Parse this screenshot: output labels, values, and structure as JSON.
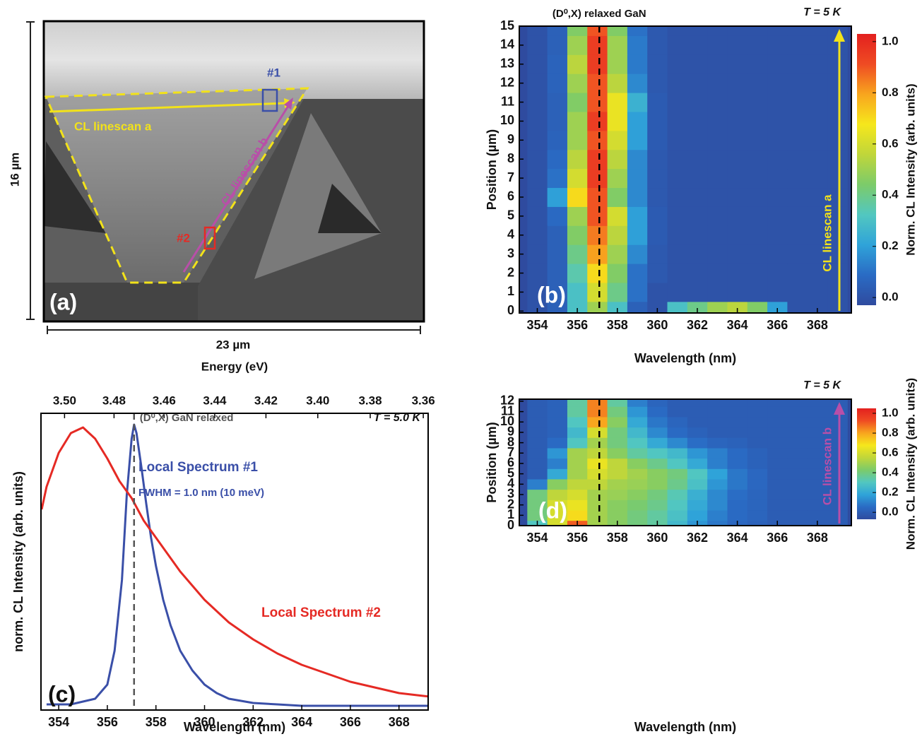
{
  "image_panel": {
    "panel_label": "(a)",
    "height_label": "16 µm",
    "width_label": "23 µm",
    "linescan_a": "CL linescan a",
    "linescan_b": "CL linescan b",
    "marker_1": "#1",
    "marker_2": "#2"
  },
  "chart_data": [
    {
      "type": "heatmap",
      "panel_label": "(b)",
      "x_label": "Wavelength (nm)",
      "y_label": "Position (µm)",
      "x": [
        354,
        355,
        356,
        357,
        358,
        359,
        360,
        361,
        362,
        363,
        364,
        365,
        366,
        367,
        368,
        369
      ],
      "y": [
        0,
        1,
        2,
        3,
        4,
        5,
        6,
        7,
        8,
        9,
        10,
        11,
        12,
        13,
        14,
        15
      ],
      "z": [
        [
          0,
          0.05,
          0.3,
          0.5,
          0.3,
          0.05,
          0,
          0.3,
          0.4,
          0.5,
          0.55,
          0.45,
          0.2,
          0,
          0,
          0
        ],
        [
          0,
          0.05,
          0.3,
          0.6,
          0.4,
          0.1,
          0,
          0,
          0,
          0,
          0,
          0,
          0,
          0,
          0,
          0
        ],
        [
          0,
          0.05,
          0.35,
          0.7,
          0.45,
          0.1,
          0.02,
          0,
          0,
          0,
          0,
          0,
          0,
          0,
          0,
          0
        ],
        [
          0,
          0.05,
          0.4,
          0.8,
          0.5,
          0.15,
          0.02,
          0,
          0,
          0,
          0,
          0,
          0,
          0,
          0,
          0
        ],
        [
          0,
          0.05,
          0.45,
          0.85,
          0.55,
          0.2,
          0.03,
          0,
          0,
          0,
          0,
          0,
          0,
          0,
          0,
          0
        ],
        [
          0,
          0.08,
          0.5,
          0.9,
          0.6,
          0.2,
          0.03,
          0,
          0,
          0,
          0,
          0,
          0,
          0,
          0,
          0
        ],
        [
          0,
          0.2,
          0.7,
          0.9,
          0.45,
          0.15,
          0.02,
          0,
          0,
          0,
          0,
          0,
          0,
          0,
          0,
          0
        ],
        [
          0,
          0.1,
          0.6,
          0.95,
          0.5,
          0.15,
          0.02,
          0,
          0,
          0,
          0,
          0,
          0,
          0,
          0,
          0
        ],
        [
          0,
          0.08,
          0.55,
          0.95,
          0.55,
          0.15,
          0.02,
          0,
          0,
          0,
          0,
          0,
          0,
          0,
          0,
          0
        ],
        [
          0,
          0.06,
          0.5,
          0.9,
          0.6,
          0.2,
          0.03,
          0,
          0,
          0,
          0,
          0,
          0,
          0,
          0,
          0
        ],
        [
          0,
          0.05,
          0.5,
          0.95,
          0.65,
          0.2,
          0.03,
          0,
          0,
          0,
          0,
          0,
          0,
          0,
          0,
          0
        ],
        [
          0,
          0.05,
          0.45,
          0.9,
          0.65,
          0.25,
          0.03,
          0,
          0,
          0,
          0,
          0,
          0,
          0,
          0,
          0
        ],
        [
          0,
          0.06,
          0.5,
          0.9,
          0.55,
          0.15,
          0.02,
          0,
          0,
          0,
          0,
          0,
          0,
          0,
          0,
          0
        ],
        [
          0,
          0.06,
          0.55,
          0.95,
          0.5,
          0.12,
          0.02,
          0,
          0,
          0,
          0,
          0,
          0,
          0,
          0,
          0
        ],
        [
          0,
          0.05,
          0.5,
          0.95,
          0.5,
          0.12,
          0.02,
          0,
          0,
          0,
          0,
          0,
          0,
          0,
          0,
          0
        ],
        [
          0,
          0.05,
          0.45,
          0.9,
          0.45,
          0.1,
          0.02,
          0,
          0,
          0,
          0,
          0,
          0,
          0,
          0,
          0
        ]
      ],
      "xlim": [
        353.1,
        369.7
      ],
      "ylim": [
        -0.1,
        15
      ],
      "xticks": [
        354,
        356,
        358,
        360,
        362,
        364,
        366,
        368
      ],
      "yticks": [
        0,
        1,
        2,
        3,
        4,
        5,
        6,
        7,
        8,
        9,
        10,
        11,
        12,
        13,
        14,
        15
      ],
      "colormap": [
        "#2f4b9f",
        "#2a6bc4",
        "#2fa3d9",
        "#52c7c0",
        "#7ccb6a",
        "#c0d63a",
        "#f6e71c",
        "#f8a51e",
        "#ef4b23",
        "#e3201f"
      ],
      "colorbar": {
        "label": "Norm. CL Intensity (arb. units)",
        "clim": [
          -0.03,
          1.03
        ],
        "ticks": [
          {
            "value": 0,
            "label": "0.0"
          },
          {
            "value": 0.2,
            "label": "0.2"
          },
          {
            "value": 0.4,
            "label": "0.4"
          },
          {
            "value": 0.6,
            "label": "0.6"
          },
          {
            "value": 0.8,
            "label": "0.8"
          },
          {
            "value": 1,
            "label": "1.0"
          }
        ]
      },
      "reference_line": {
        "x": 357.1,
        "label": "(D⁰,X) relaxed GaN"
      },
      "temperature": "T = 5 K",
      "linescan": {
        "label": "CL linescan a",
        "color": "#f2e21a"
      }
    },
    {
      "type": "line",
      "panel_label": "(c)",
      "x_label": "Wavelength (nm)",
      "x2_label": "Energy (eV)",
      "y_label": "norm. CL Intensity (arb. units)",
      "xlim": [
        353.27,
        369.2
      ],
      "ylim": [
        -0.01,
        1.04
      ],
      "xticks": [
        354,
        356,
        358,
        360,
        362,
        364,
        366,
        368
      ],
      "x2ticks": [
        {
          "value": 3.5,
          "label": "3.50"
        },
        3.48,
        3.46,
        3.44,
        3.42,
        {
          "value": 3.4,
          "label": "3.40"
        },
        3.38,
        3.36
      ],
      "series": [
        {
          "name": "Local Spectrum #1",
          "color": "#3a4fa8",
          "x": [
            353.5,
            354,
            354.5,
            355,
            355.5,
            356,
            356.3,
            356.6,
            356.8,
            357,
            357.1,
            357.2,
            357.4,
            357.6,
            357.8,
            358,
            358.3,
            358.6,
            359,
            359.5,
            360,
            360.5,
            361,
            362,
            363,
            364,
            366,
            368,
            370
          ],
          "values": [
            0.01,
            0.01,
            0.01,
            0.02,
            0.03,
            0.08,
            0.2,
            0.45,
            0.75,
            0.95,
            1.0,
            0.97,
            0.85,
            0.72,
            0.6,
            0.5,
            0.38,
            0.29,
            0.2,
            0.13,
            0.08,
            0.05,
            0.03,
            0.015,
            0.01,
            0.005,
            0.005,
            0.005,
            0.005
          ]
        },
        {
          "name": "Local Spectrum #2",
          "color": "#e52a24",
          "x": [
            353.3,
            353.5,
            354,
            354.5,
            355,
            355.5,
            356,
            356.5,
            357,
            357.5,
            358,
            358.5,
            359,
            359.5,
            360,
            361,
            362,
            363,
            364,
            365,
            366,
            367,
            368,
            369,
            370
          ],
          "values": [
            0.7,
            0.78,
            0.9,
            0.97,
            0.99,
            0.95,
            0.88,
            0.8,
            0.74,
            0.66,
            0.6,
            0.54,
            0.48,
            0.43,
            0.38,
            0.3,
            0.24,
            0.19,
            0.15,
            0.12,
            0.09,
            0.07,
            0.05,
            0.04,
            0.03
          ]
        }
      ],
      "fwhm_label": "FWHM = 1.0 nm (10 meV)",
      "reference_line": {
        "x": 357.1,
        "label": "(D⁰,X) GaN relaxed"
      },
      "temperature": "T = 5.0 K"
    },
    {
      "type": "heatmap",
      "panel_label": "(d)",
      "x_label": "Wavelength (nm)",
      "y_label": "Position (µm)",
      "x": [
        354,
        355,
        356,
        357,
        358,
        359,
        360,
        361,
        362,
        363,
        364,
        365,
        366,
        367,
        368,
        369
      ],
      "y": [
        0,
        1,
        2,
        3,
        4,
        5,
        6,
        7,
        8,
        9,
        10,
        11,
        12
      ],
      "z": [
        [
          0.3,
          0.6,
          0.9,
          0.5,
          0.45,
          0.4,
          0.35,
          0.25,
          0.15,
          0.08,
          0.04,
          0.02,
          0,
          0,
          0,
          0
        ],
        [
          0.4,
          0.6,
          0.7,
          0.5,
          0.45,
          0.4,
          0.35,
          0.28,
          0.18,
          0.1,
          0.05,
          0.03,
          0,
          0,
          0,
          0
        ],
        [
          0.4,
          0.6,
          0.65,
          0.5,
          0.45,
          0.42,
          0.38,
          0.3,
          0.2,
          0.12,
          0.05,
          0.03,
          0,
          0,
          0,
          0
        ],
        [
          0.4,
          0.55,
          0.6,
          0.5,
          0.48,
          0.45,
          0.4,
          0.32,
          0.22,
          0.12,
          0.06,
          0.03,
          0,
          0,
          0,
          0
        ],
        [
          0.1,
          0.45,
          0.55,
          0.55,
          0.5,
          0.48,
          0.45,
          0.38,
          0.28,
          0.15,
          0.08,
          0.04,
          0,
          0,
          0,
          0
        ],
        [
          0,
          0.2,
          0.5,
          0.6,
          0.55,
          0.5,
          0.45,
          0.4,
          0.3,
          0.18,
          0.08,
          0.04,
          0,
          0,
          0,
          0
        ],
        [
          0,
          0.1,
          0.5,
          0.65,
          0.55,
          0.45,
          0.38,
          0.3,
          0.2,
          0.1,
          0.05,
          0.02,
          0,
          0,
          0,
          0
        ],
        [
          0,
          0.15,
          0.5,
          0.55,
          0.45,
          0.35,
          0.3,
          0.25,
          0.15,
          0.1,
          0.05,
          0.02,
          0,
          0,
          0,
          0
        ],
        [
          0,
          0.05,
          0.3,
          0.5,
          0.4,
          0.3,
          0.2,
          0.12,
          0.06,
          0.03,
          0.02,
          0,
          0,
          0,
          0,
          0
        ],
        [
          0,
          0.02,
          0.25,
          0.6,
          0.4,
          0.25,
          0.12,
          0.05,
          0.02,
          0,
          0,
          0,
          0,
          0,
          0,
          0
        ],
        [
          0,
          0.02,
          0.3,
          0.8,
          0.45,
          0.2,
          0.08,
          0.03,
          0,
          0,
          0,
          0,
          0,
          0,
          0,
          0
        ],
        [
          0,
          0.02,
          0.35,
          0.85,
          0.4,
          0.15,
          0.05,
          0,
          0,
          0,
          0,
          0,
          0,
          0,
          0,
          0
        ],
        [
          0,
          0.02,
          0.35,
          0.85,
          0.35,
          0.1,
          0.03,
          0,
          0,
          0,
          0,
          0,
          0,
          0,
          0,
          0
        ]
      ],
      "xlim": [
        353.1,
        369.7
      ],
      "ylim": [
        0,
        12.2
      ],
      "xticks": [
        354,
        356,
        358,
        360,
        362,
        364,
        366,
        368
      ],
      "yticks": [
        0,
        1,
        2,
        3,
        4,
        5,
        6,
        7,
        8,
        9,
        10,
        11,
        12
      ],
      "colormap": [
        "#2f4b9f",
        "#2a6bc4",
        "#2fa3d9",
        "#52c7c0",
        "#7ccb6a",
        "#c0d63a",
        "#f6e71c",
        "#f8a51e",
        "#ef4b23",
        "#e3201f"
      ],
      "colorbar": {
        "label": "Norm. CL Intensity (arb. units)",
        "clim": [
          -0.07,
          1.05
        ],
        "ticks": [
          {
            "value": 0,
            "label": "0.0"
          },
          {
            "value": 0.2,
            "label": "0.2"
          },
          {
            "value": 0.4,
            "label": "0.4"
          },
          {
            "value": 0.6,
            "label": "0.6"
          },
          {
            "value": 0.8,
            "label": "0.8"
          },
          {
            "value": 1,
            "label": "1.0"
          }
        ]
      },
      "reference_line": {
        "x": 357.1,
        "label": null
      },
      "temperature": "T = 5 K",
      "linescan": {
        "label": "CL linescan b",
        "color": "#b84fa8"
      }
    }
  ]
}
